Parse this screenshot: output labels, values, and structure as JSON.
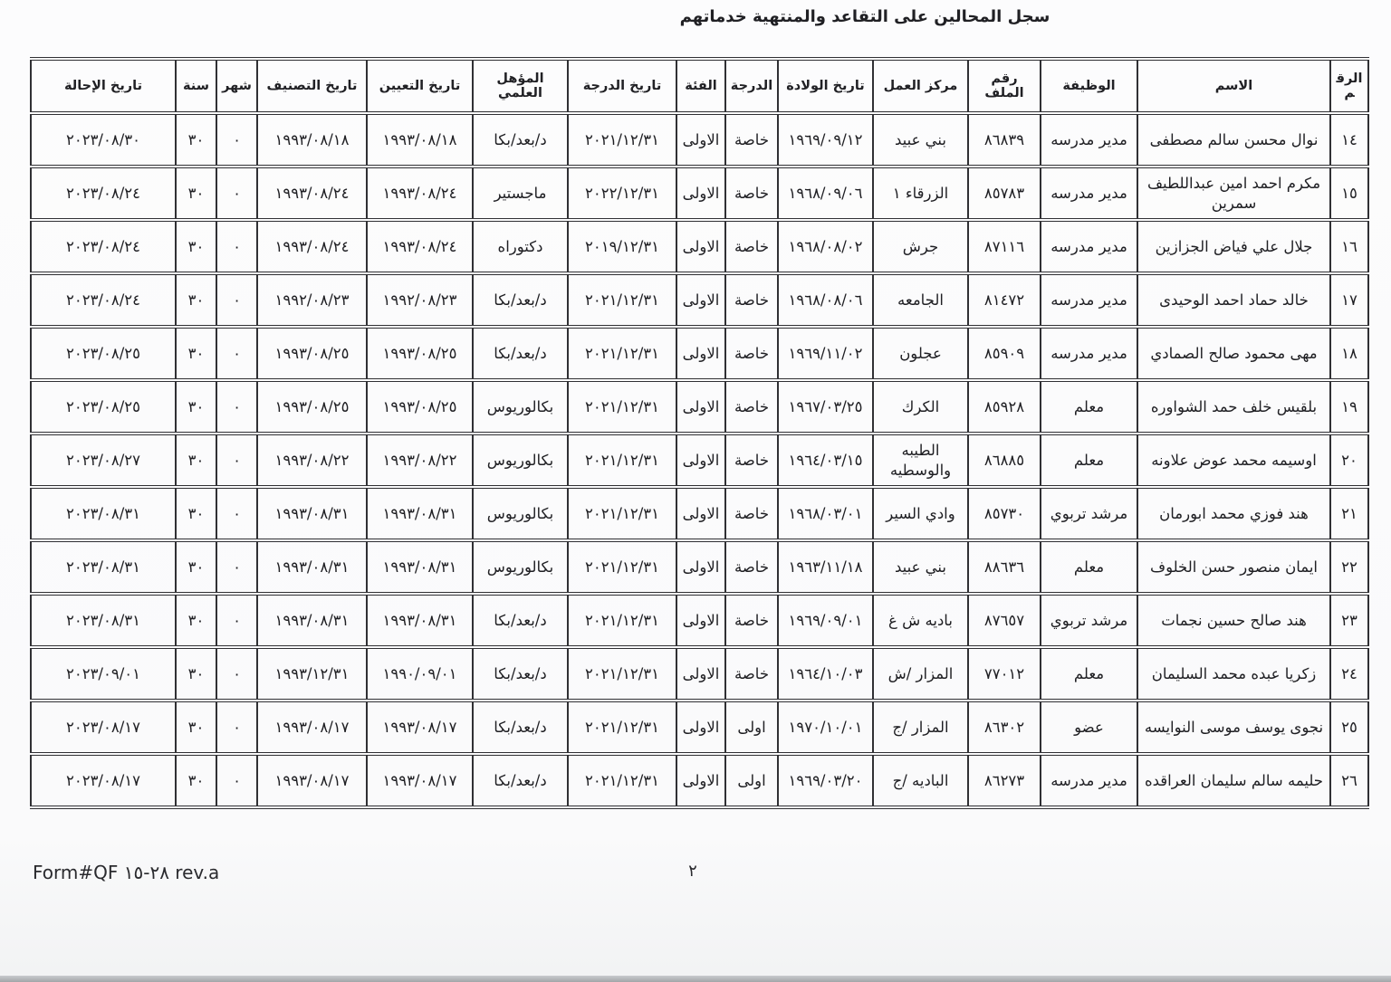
{
  "page": {
    "title": "سجل المحالين على التقاعد والمنتهية خدماتهم",
    "page_number": "٢",
    "form_code": "Form#QF ٢٨-١٥ rev.a"
  },
  "table": {
    "columns": [
      {
        "key": "number",
        "label": "الرقم"
      },
      {
        "key": "name",
        "label": "الاسم"
      },
      {
        "key": "job",
        "label": "الوظيفة"
      },
      {
        "key": "file-number",
        "label": "رقم الملف"
      },
      {
        "key": "work-center",
        "label": "مركز العمل"
      },
      {
        "key": "birth-date",
        "label": "تاريخ الولادة"
      },
      {
        "key": "grade",
        "label": "الدرجة"
      },
      {
        "key": "category",
        "label": "الفئة"
      },
      {
        "key": "grade-date",
        "label": "تاريخ الدرجة"
      },
      {
        "key": "qualification",
        "label": "المؤهل العلمي"
      },
      {
        "key": "appointment-date",
        "label": "تاريخ التعيين"
      },
      {
        "key": "classification-date",
        "label": "تاريخ التصنيف"
      },
      {
        "key": "month",
        "label": "شهر"
      },
      {
        "key": "year",
        "label": "سنة"
      },
      {
        "key": "referral-date",
        "label": "تاريخ الإحالة"
      }
    ],
    "rows": [
      [
        "١٤",
        "نوال محسن سالم مصطفى",
        "مدير مدرسه",
        "٨٦٨٣٩",
        "بني عبيد",
        "١٩٦٩/٠٩/١٢",
        "خاصة",
        "الاولى",
        "٢٠٢١/١٢/٣١",
        "د/بعد/بكا",
        "١٩٩٣/٠٨/١٨",
        "١٩٩٣/٠٨/١٨",
        "٠",
        "٣٠",
        "٢٠٢٣/٠٨/٣٠"
      ],
      [
        "١٥",
        "مكرم احمد امين عبداللطيف سمرين",
        "مدير مدرسه",
        "٨٥٧٨٣",
        "الزرقاء ١",
        "١٩٦٨/٠٩/٠٦",
        "خاصة",
        "الاولى",
        "٢٠٢٢/١٢/٣١",
        "ماجستير",
        "١٩٩٣/٠٨/٢٤",
        "١٩٩٣/٠٨/٢٤",
        "٠",
        "٣٠",
        "٢٠٢٣/٠٨/٢٤"
      ],
      [
        "١٦",
        "جلال علي فياض الجزازين",
        "مدير مدرسه",
        "٨٧١١٦",
        "جرش",
        "١٩٦٨/٠٨/٠٢",
        "خاصة",
        "الاولى",
        "٢٠١٩/١٢/٣١",
        "دكتوراه",
        "١٩٩٣/٠٨/٢٤",
        "١٩٩٣/٠٨/٢٤",
        "٠",
        "٣٠",
        "٢٠٢٣/٠٨/٢٤"
      ],
      [
        "١٧",
        "خالد حماد احمد الوحيدى",
        "مدير مدرسه",
        "٨١٤٧٢",
        "الجامعه",
        "١٩٦٨/٠٨/٠٦",
        "خاصة",
        "الاولى",
        "٢٠٢١/١٢/٣١",
        "د/بعد/بكا",
        "١٩٩٢/٠٨/٢٣",
        "١٩٩٢/٠٨/٢٣",
        "٠",
        "٣٠",
        "٢٠٢٣/٠٨/٢٤"
      ],
      [
        "١٨",
        "مهى محمود صالح الصمادي",
        "مدير مدرسه",
        "٨٥٩٠٩",
        "عجلون",
        "١٩٦٩/١١/٠٢",
        "خاصة",
        "الاولى",
        "٢٠٢١/١٢/٣١",
        "د/بعد/بكا",
        "١٩٩٣/٠٨/٢٥",
        "١٩٩٣/٠٨/٢٥",
        "٠",
        "٣٠",
        "٢٠٢٣/٠٨/٢٥"
      ],
      [
        "١٩",
        "بلقيس خلف حمد الشواوره",
        "معلم",
        "٨٥٩٢٨",
        "الكرك",
        "١٩٦٧/٠٣/٢٥",
        "خاصة",
        "الاولى",
        "٢٠٢١/١٢/٣١",
        "بكالوريوس",
        "١٩٩٣/٠٨/٢٥",
        "١٩٩٣/٠٨/٢٥",
        "٠",
        "٣٠",
        "٢٠٢٣/٠٨/٢٥"
      ],
      [
        "٢٠",
        "اوسيمه محمد عوض علاونه",
        "معلم",
        "٨٦٨٨٥",
        "الطيبه والوسطيه",
        "١٩٦٤/٠٣/١٥",
        "خاصة",
        "الاولى",
        "٢٠٢١/١٢/٣١",
        "بكالوريوس",
        "١٩٩٣/٠٨/٢٢",
        "١٩٩٣/٠٨/٢٢",
        "٠",
        "٣٠",
        "٢٠٢٣/٠٨/٢٧"
      ],
      [
        "٢١",
        "هند فوزي محمد ابورمان",
        "مرشد تربوي",
        "٨٥٧٣٠",
        "وادي السير",
        "١٩٦٨/٠٣/٠١",
        "خاصة",
        "الاولى",
        "٢٠٢١/١٢/٣١",
        "بكالوريوس",
        "١٩٩٣/٠٨/٣١",
        "١٩٩٣/٠٨/٣١",
        "٠",
        "٣٠",
        "٢٠٢٣/٠٨/٣١"
      ],
      [
        "٢٢",
        "ايمان منصور حسن الخلوف",
        "معلم",
        "٨٨٦٣٦",
        "بني عبيد",
        "١٩٦٣/١١/١٨",
        "خاصة",
        "الاولى",
        "٢٠٢١/١٢/٣١",
        "بكالوريوس",
        "١٩٩٣/٠٨/٣١",
        "١٩٩٣/٠٨/٣١",
        "٠",
        "٣٠",
        "٢٠٢٣/٠٨/٣١"
      ],
      [
        "٢٣",
        "هند صالح حسين نجمات",
        "مرشد تربوي",
        "٨٧٦٥٧",
        "باديه ش غ",
        "١٩٦٩/٠٩/٠١",
        "خاصة",
        "الاولى",
        "٢٠٢١/١٢/٣١",
        "د/بعد/بكا",
        "١٩٩٣/٠٨/٣١",
        "١٩٩٣/٠٨/٣١",
        "٠",
        "٣٠",
        "٢٠٢٣/٠٨/٣١"
      ],
      [
        "٢٤",
        "زكريا عبده محمد السليمان",
        "معلم",
        "٧٧٠١٢",
        "المزار /ش",
        "١٩٦٤/١٠/٠٣",
        "خاصة",
        "الاولى",
        "٢٠٢١/١٢/٣١",
        "د/بعد/بكا",
        "١٩٩٠/٠٩/٠١",
        "١٩٩٣/١٢/٣١",
        "٠",
        "٣٠",
        "٢٠٢٣/٠٩/٠١"
      ],
      [
        "٢٥",
        "نجوى يوسف موسى النوايسه",
        "عضو",
        "٨٦٣٠٢",
        "المزار /ج",
        "١٩٧٠/١٠/٠١",
        "اولى",
        "الاولى",
        "٢٠٢١/١٢/٣١",
        "د/بعد/بكا",
        "١٩٩٣/٠٨/١٧",
        "١٩٩٣/٠٨/١٧",
        "٠",
        "٣٠",
        "٢٠٢٣/٠٨/١٧"
      ],
      [
        "٢٦",
        "حليمه سالم سليمان العراقده",
        "مدير مدرسه",
        "٨٦٢٧٣",
        "الباديه /ج",
        "١٩٦٩/٠٣/٢٠",
        "اولى",
        "الاولى",
        "٢٠٢١/١٢/٣١",
        "د/بعد/بكا",
        "١٩٩٣/٠٨/١٧",
        "١٩٩٣/٠٨/١٧",
        "٠",
        "٣٠",
        "٢٠٢٣/٠٨/١٧"
      ]
    ]
  }
}
